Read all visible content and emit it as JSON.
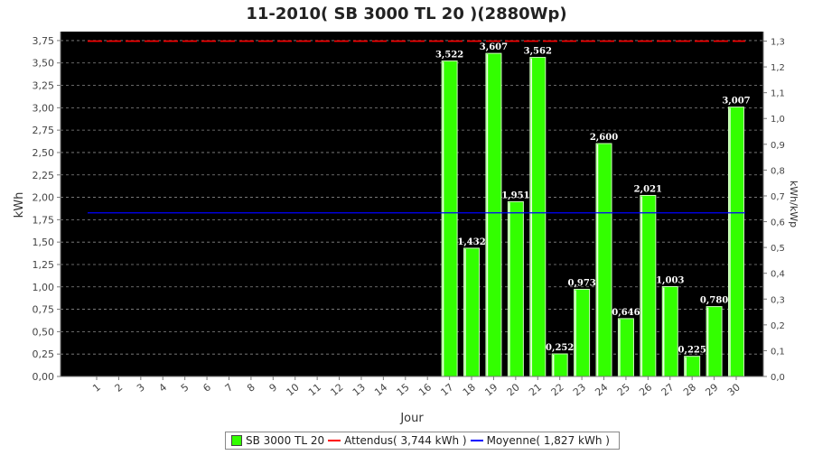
{
  "chart_data": {
    "type": "bar",
    "title": "11-2010( SB 3000 TL 20 )(2880Wp)",
    "xlabel": "Jour",
    "ylabel": "kWh",
    "y2label": "kWh/kWp",
    "categories": [
      "1",
      "2",
      "3",
      "4",
      "5",
      "6",
      "7",
      "8",
      "9",
      "10",
      "11",
      "12",
      "13",
      "14",
      "15",
      "16",
      "17",
      "18",
      "19",
      "20",
      "21",
      "22",
      "23",
      "24",
      "25",
      "26",
      "27",
      "28",
      "29",
      "30"
    ],
    "series": [
      {
        "name": "SB 3000 TL 20",
        "values": [
          0,
          0,
          0,
          0,
          0,
          0,
          0,
          0,
          0,
          0,
          0,
          0,
          0,
          0,
          0,
          0,
          3.522,
          1.432,
          3.607,
          1.951,
          3.562,
          0.252,
          0.973,
          2.6,
          0.646,
          2.021,
          1.003,
          0.225,
          0.78,
          3.007
        ],
        "value_labels": [
          "",
          "",
          "",
          "",
          "",
          "",
          "",
          "",
          "",
          "",
          "",
          "",
          "",
          "",
          "",
          "",
          "3,522",
          "1,432",
          "3,607",
          "1,951",
          "3,562",
          "0,252",
          "0,973",
          "2,600",
          "0,646",
          "2,021",
          "1,003",
          "0,225",
          "0,780",
          "3,007"
        ]
      }
    ],
    "reference_lines": [
      {
        "name": "Attendus( 3,744 kWh )",
        "value": 3.744,
        "color": "#ff0000"
      },
      {
        "name": "Moyenne( 1,827 kWh )",
        "value": 1.827,
        "color": "#0000ff"
      }
    ],
    "ylim": [
      0,
      3.85
    ],
    "y_ticks": [
      "0,00",
      "0,25",
      "0,50",
      "0,75",
      "1,00",
      "1,25",
      "1,50",
      "1,75",
      "2,00",
      "2,25",
      "2,50",
      "2,75",
      "3,00",
      "3,25",
      "3,50",
      "3,75"
    ],
    "y2lim": [
      0,
      1.3368
    ],
    "y2_ticks": [
      "0,0",
      "0,1",
      "0,2",
      "0,3",
      "0,4",
      "0,5",
      "0,6",
      "0,7",
      "0,8",
      "0,9",
      "1,0",
      "1,1",
      "1,2",
      "1,3"
    ],
    "grid": true,
    "legend_position": "bottom",
    "colors": {
      "plot_bg": "#000000",
      "bar": "#33ff00",
      "bar_edge": "#ccffbb",
      "grid": "#888888"
    }
  }
}
